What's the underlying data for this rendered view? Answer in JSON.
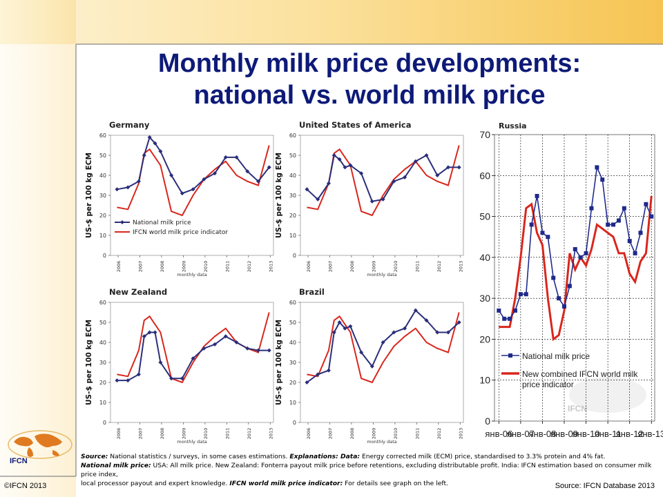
{
  "slide": {
    "title_line1": "Monthly milk price developments:",
    "title_line2": "national vs. world milk price",
    "copyright": "©IFCN 2013",
    "source_right": "Source: IFCN Database 2013",
    "logo_text": "IFCN",
    "watermark_text": "IFCN",
    "notes": {
      "line1_b1": "Source:",
      "line1_t1": " National statistics / surveys, in some cases estimations. ",
      "line1_b2": "Explanations: Data:",
      "line1_t2": " Energy corrected milk (ECM) price, standardised to 3.3% protein and 4% fat.",
      "line2_b1": "National milk price:",
      "line2_t1": " USA: All milk price. New Zealand: Fonterra payout milk price before retentions, excluding distributable profit. India: IFCN estimation based on consumer milk price index,",
      "line3_t1": "local processor payout and expert knowledge. ",
      "line3_b1": "IFCN world milk price indicator:",
      "line3_t2": " For details see graph on the left."
    },
    "colors": {
      "national": "#2b2e7a",
      "world": "#d9261c",
      "russia_national": "#1f2a8a",
      "title": "#0d1a78"
    }
  },
  "chart_data": [
    {
      "type": "line",
      "title": "Germany",
      "ylabel": "US-$ per 100 kg ECM",
      "xlabel": "monthly data",
      "ylim": [
        0,
        60
      ],
      "yticks": [
        0,
        10,
        20,
        30,
        40,
        50,
        60
      ],
      "xticks": [
        "2006",
        "2007",
        "2008",
        "2009",
        "2010",
        "2011",
        "2012",
        "2013"
      ],
      "legend": [
        "National milk price",
        "IFCN world milk price indicator"
      ],
      "legend_position": "bottom-left",
      "x": [
        2006,
        2006.5,
        2007,
        2007.25,
        2007.5,
        2007.75,
        2008,
        2008.5,
        2009,
        2009.5,
        2010,
        2010.5,
        2011,
        2011.5,
        2012,
        2012.5,
        2013
      ],
      "series": [
        {
          "name": "National milk price",
          "values": [
            33,
            34,
            37,
            50,
            59,
            56,
            52,
            40,
            31,
            33,
            38,
            41,
            49,
            49,
            42,
            37,
            44
          ]
        },
        {
          "name": "IFCN world milk price indicator",
          "values": [
            24,
            23,
            36,
            51,
            53,
            49,
            45,
            22,
            20,
            30,
            38,
            43,
            47,
            40,
            37,
            35,
            55
          ]
        }
      ]
    },
    {
      "type": "line",
      "title": "United States of America",
      "ylabel": "US-$ per 100 kg ECM",
      "xlabel": "monthly data",
      "ylim": [
        0,
        60
      ],
      "yticks": [
        0,
        10,
        20,
        30,
        40,
        50,
        60
      ],
      "xticks": [
        "2006",
        "2007",
        "2008",
        "2009",
        "2010",
        "2011",
        "2012",
        "2013"
      ],
      "x": [
        2006,
        2006.5,
        2007,
        2007.25,
        2007.5,
        2007.75,
        2008,
        2008.5,
        2009,
        2009.5,
        2010,
        2010.5,
        2011,
        2011.5,
        2012,
        2012.5,
        2013
      ],
      "series": [
        {
          "name": "National milk price",
          "values": [
            33,
            28,
            36,
            50,
            48,
            44,
            45,
            41,
            27,
            28,
            37,
            39,
            47,
            50,
            40,
            44,
            44
          ]
        },
        {
          "name": "IFCN world milk price indicator",
          "values": [
            24,
            23,
            36,
            51,
            53,
            49,
            45,
            22,
            20,
            30,
            38,
            43,
            47,
            40,
            37,
            35,
            55
          ]
        }
      ]
    },
    {
      "type": "line",
      "title": "New Zealand",
      "ylabel": "US-$ per 100 kg ECM",
      "xlabel": "monthly data",
      "ylim": [
        0,
        60
      ],
      "yticks": [
        0,
        10,
        20,
        30,
        40,
        50,
        60
      ],
      "xticks": [
        "2006",
        "2007",
        "2008",
        "2009",
        "2010",
        "2011",
        "2012",
        "2013"
      ],
      "x": [
        2006,
        2006.5,
        2007,
        2007.25,
        2007.5,
        2007.75,
        2008,
        2008.5,
        2009,
        2009.5,
        2010,
        2010.5,
        2011,
        2011.5,
        2012,
        2012.5,
        2013
      ],
      "series": [
        {
          "name": "National milk price",
          "values": [
            21,
            21,
            24,
            43,
            45,
            45,
            30,
            22,
            22,
            32,
            37,
            39,
            43,
            40,
            37,
            36,
            36
          ]
        },
        {
          "name": "IFCN world milk price indicator",
          "values": [
            24,
            23,
            36,
            51,
            53,
            49,
            45,
            22,
            20,
            30,
            38,
            43,
            47,
            40,
            37,
            35,
            55
          ]
        }
      ]
    },
    {
      "type": "line",
      "title": "Brazil",
      "ylabel": "US-$ per 100 kg ECM",
      "xlabel": "monthly data",
      "ylim": [
        0,
        60
      ],
      "yticks": [
        0,
        10,
        20,
        30,
        40,
        50,
        60
      ],
      "xticks": [
        "2006",
        "2007",
        "2008",
        "2009",
        "2010",
        "2011",
        "2012",
        "2013"
      ],
      "x": [
        2006,
        2006.5,
        2007,
        2007.25,
        2007.5,
        2007.75,
        2008,
        2008.5,
        2009,
        2009.5,
        2010,
        2010.5,
        2011,
        2011.5,
        2012,
        2012.5,
        2013
      ],
      "series": [
        {
          "name": "National milk price",
          "values": [
            20,
            24,
            26,
            45,
            50,
            47,
            48,
            35,
            28,
            40,
            45,
            47,
            56,
            51,
            45,
            45,
            50
          ]
        },
        {
          "name": "IFCN world milk price indicator",
          "values": [
            24,
            23,
            36,
            51,
            53,
            49,
            45,
            22,
            20,
            30,
            38,
            43,
            47,
            40,
            37,
            35,
            55
          ]
        }
      ]
    },
    {
      "type": "line",
      "title": "Russia",
      "ylim": [
        0,
        70
      ],
      "yticks": [
        0,
        10,
        20,
        30,
        40,
        50,
        60,
        70
      ],
      "xticks": [
        "янв-06",
        "янв-07",
        "янв-08",
        "янв-09",
        "янв-10",
        "янв-11",
        "янв-12",
        "янв-13"
      ],
      "grid": true,
      "legend": [
        "National milk price",
        "New combined IFCN world milk price indicator"
      ],
      "legend_position": "bottom-left",
      "x": [
        2006,
        2006.25,
        2006.5,
        2006.75,
        2007,
        2007.25,
        2007.5,
        2007.75,
        2008,
        2008.25,
        2008.5,
        2008.75,
        2009,
        2009.25,
        2009.5,
        2009.75,
        2010,
        2010.25,
        2010.5,
        2010.75,
        2011,
        2011.25,
        2011.5,
        2011.75,
        2012,
        2012.25,
        2012.5,
        2012.75,
        2013
      ],
      "series": [
        {
          "name": "National milk price",
          "values": [
            27,
            25,
            25,
            27,
            31,
            31,
            48,
            55,
            46,
            45,
            35,
            30,
            28,
            33,
            42,
            40,
            41,
            52,
            62,
            59,
            48,
            48,
            49,
            52,
            44,
            41,
            46,
            53,
            50
          ]
        },
        {
          "name": "New combined IFCN world milk price indicator",
          "values": [
            23,
            23,
            23,
            30,
            40,
            52,
            53,
            46,
            43,
            30,
            20,
            21,
            27,
            41,
            37,
            40,
            38,
            42,
            48,
            47,
            46,
            45,
            41,
            41,
            36,
            34,
            39,
            41,
            55
          ]
        }
      ]
    }
  ]
}
